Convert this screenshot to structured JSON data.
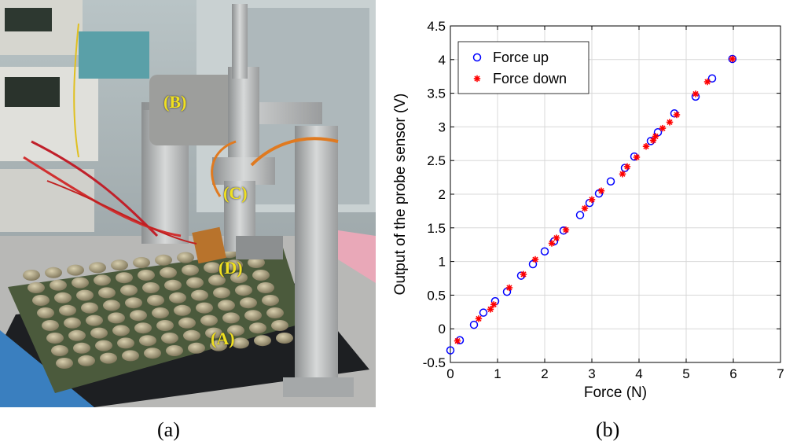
{
  "panels": {
    "a": {
      "caption": "(a)",
      "labels": [
        {
          "id": "A",
          "text": "(A)"
        },
        {
          "id": "B",
          "text": "(B)"
        },
        {
          "id": "C",
          "text": "(C)"
        },
        {
          "id": "D",
          "text": "(D)"
        }
      ]
    },
    "b": {
      "caption": "(b)"
    }
  },
  "chart_data": {
    "type": "scatter",
    "title": "",
    "xlabel": "Force (N)",
    "ylabel": "Output of the probe sensor (V)",
    "xlim": [
      0,
      7
    ],
    "ylim": [
      -0.5,
      4.5
    ],
    "xticks": [
      "0",
      "1",
      "2",
      "3",
      "4",
      "5",
      "6",
      "7"
    ],
    "yticks": [
      "-0.5",
      "0",
      "0.5",
      "1",
      "1.5",
      "2",
      "2.5",
      "3",
      "3.5",
      "4",
      "4.5"
    ],
    "grid": true,
    "legend_position": "top-left",
    "series": [
      {
        "name": "Force up",
        "marker": "circle",
        "color": "#0000ff",
        "x": [
          0.0,
          0.2,
          0.5,
          0.7,
          0.95,
          1.2,
          1.5,
          1.75,
          2.0,
          2.2,
          2.4,
          2.75,
          2.95,
          3.15,
          3.4,
          3.7,
          3.9,
          4.25,
          4.4,
          4.75,
          5.2,
          5.55,
          5.98
        ],
        "y": [
          -0.32,
          -0.17,
          0.06,
          0.24,
          0.41,
          0.55,
          0.79,
          0.96,
          1.15,
          1.3,
          1.46,
          1.69,
          1.87,
          2.01,
          2.19,
          2.39,
          2.56,
          2.79,
          2.92,
          3.2,
          3.45,
          3.72,
          4.01
        ]
      },
      {
        "name": "Force down",
        "marker": "asterisk",
        "color": "#ff0000",
        "x": [
          0.15,
          0.6,
          0.85,
          0.92,
          1.25,
          1.55,
          1.8,
          2.15,
          2.25,
          2.45,
          2.85,
          3.0,
          3.2,
          3.65,
          3.75,
          3.95,
          4.15,
          4.3,
          4.35,
          4.5,
          4.65,
          4.8,
          5.2,
          5.45,
          5.98
        ],
        "y": [
          -0.18,
          0.15,
          0.29,
          0.36,
          0.61,
          0.81,
          1.03,
          1.27,
          1.35,
          1.47,
          1.79,
          1.92,
          2.05,
          2.3,
          2.41,
          2.55,
          2.71,
          2.8,
          2.86,
          2.98,
          3.07,
          3.18,
          3.49,
          3.67,
          4.01
        ]
      }
    ]
  }
}
